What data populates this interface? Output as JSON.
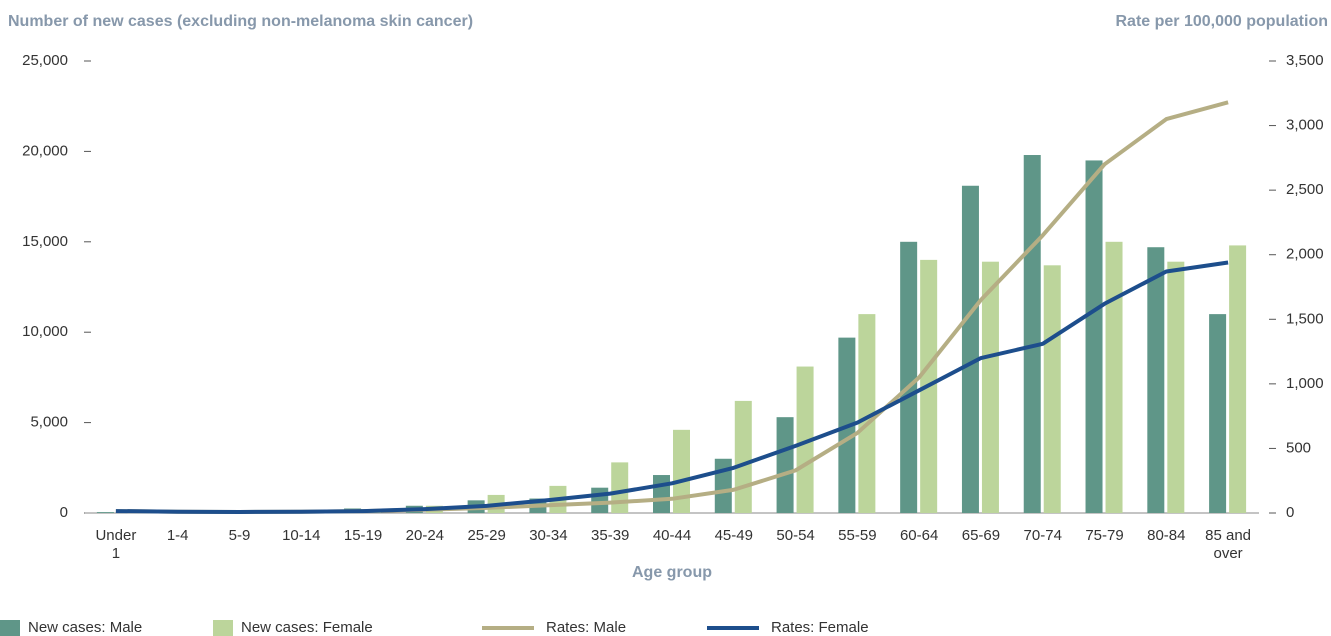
{
  "chart_data": {
    "type": "bar_line",
    "y_label": "Number of new cases (excluding non-melanoma skin cancer)",
    "y2_label": "Rate per 100,000 population",
    "x_label": "Age group",
    "categories": [
      "Under 1",
      "1-4",
      "5-9",
      "10-14",
      "15-19",
      "20-24",
      "25-29",
      "30-34",
      "35-39",
      "40-44",
      "45-49",
      "50-54",
      "55-59",
      "60-64",
      "65-69",
      "70-74",
      "75-79",
      "80-84",
      "85 and over"
    ],
    "ylim": [
      0,
      25000
    ],
    "yticks": [
      0,
      {
        "value": 5000,
        "label": "5,000"
      },
      {
        "value": 10000,
        "label": "10,000"
      },
      {
        "value": 15000,
        "label": "15,000"
      },
      {
        "value": 20000,
        "label": "20,000"
      },
      {
        "value": 25000,
        "label": "25,000"
      }
    ],
    "y2lim": [
      0,
      3500
    ],
    "y2ticks": [
      0,
      500,
      {
        "value": 1000,
        "label": "1,000"
      },
      {
        "value": 1500,
        "label": "1,500"
      },
      {
        "value": 2000,
        "label": "2,000"
      },
      {
        "value": 2500,
        "label": "2,500"
      },
      {
        "value": 3000,
        "label": "3,000"
      },
      {
        "value": 3500,
        "label": "3,500"
      }
    ],
    "series": [
      {
        "name": "New cases: Male",
        "type": "bar",
        "color": "#5f9688",
        "values": [
          50,
          30,
          20,
          30,
          250,
          400,
          700,
          800,
          1400,
          2100,
          3000,
          5300,
          9700,
          15000,
          18100,
          19800,
          19500,
          14700,
          11000
        ]
      },
      {
        "name": "New cases: Female",
        "type": "bar",
        "color": "#bcd59b",
        "values": [
          40,
          30,
          20,
          30,
          200,
          400,
          1000,
          1500,
          2800,
          4600,
          6200,
          8100,
          11000,
          14000,
          13900,
          13700,
          15000,
          13900,
          14800
        ]
      },
      {
        "name": "Rates: Male",
        "type": "line",
        "axis": "y2",
        "color": "#b5ae84",
        "values": [
          15,
          10,
          8,
          10,
          15,
          25,
          40,
          60,
          80,
          110,
          180,
          330,
          620,
          1050,
          1650,
          2150,
          2700,
          3050,
          3180
        ]
      },
      {
        "name": "Rates: Female",
        "type": "line",
        "axis": "y2",
        "color": "#1d4e8c",
        "values": [
          15,
          10,
          8,
          10,
          15,
          30,
          55,
          100,
          150,
          230,
          350,
          520,
          700,
          950,
          1200,
          1310,
          1620,
          1870,
          1940
        ]
      }
    ]
  }
}
